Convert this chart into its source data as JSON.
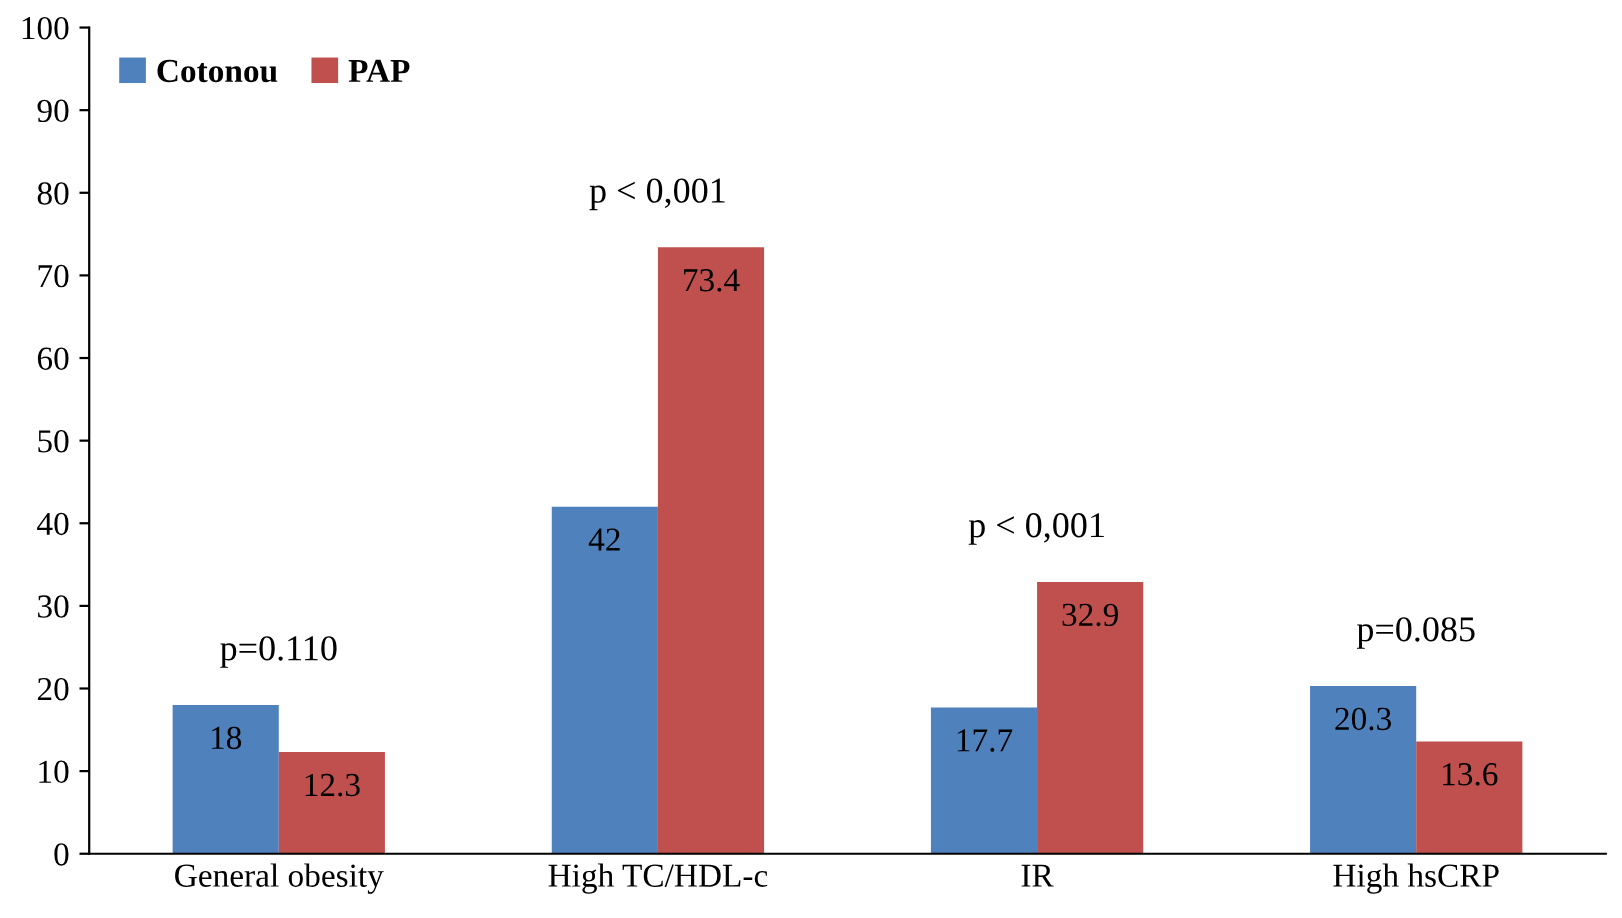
{
  "chart_data": {
    "type": "bar",
    "categories": [
      "General obesity",
      "High TC/HDL-c",
      "IR",
      "High hsCRP"
    ],
    "series": [
      {
        "name": "Cotonou",
        "color": "#4f81bd",
        "values": [
          18,
          42,
          17.7,
          20.3
        ]
      },
      {
        "name": "PAP",
        "color": "#c0504d",
        "values": [
          12.3,
          73.4,
          32.9,
          13.6
        ]
      }
    ],
    "ylim": [
      0,
      100
    ],
    "yticks": [
      0,
      10,
      20,
      30,
      40,
      50,
      60,
      70,
      80,
      90,
      100
    ],
    "grid": false,
    "legend": "top left",
    "data_labels": true,
    "annotations": [
      "p=0.110",
      "p < 0,001",
      "p < 0,001",
      "p=0.085"
    ]
  }
}
